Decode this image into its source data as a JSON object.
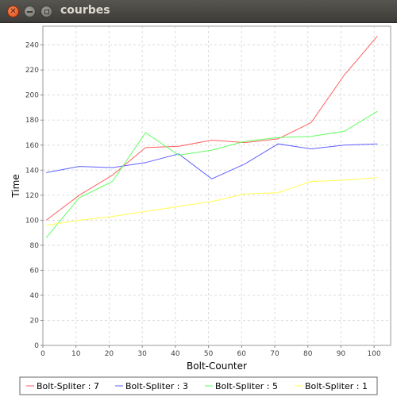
{
  "window": {
    "title": "courbes",
    "close_icon": "close-icon",
    "minimize_icon": "minimize-icon",
    "maximize_icon": "maximize-icon"
  },
  "chart_data": {
    "type": "line",
    "title": "",
    "xlabel": "Bolt-Counter",
    "ylabel": "Time",
    "xlim": [
      0,
      105
    ],
    "ylim": [
      0,
      255
    ],
    "xticks": [
      0,
      10,
      20,
      30,
      40,
      50,
      60,
      70,
      80,
      90,
      100
    ],
    "yticks": [
      0,
      20,
      40,
      60,
      80,
      100,
      120,
      140,
      160,
      180,
      200,
      220,
      240
    ],
    "grid": true,
    "legend": "bottom",
    "x": [
      1,
      11,
      21,
      31,
      41,
      51,
      61,
      71,
      81,
      91,
      101
    ],
    "series": [
      {
        "name": "Bolt-Spliter : 7",
        "color": "#ff5f5f",
        "values": [
          100,
          120,
          136,
          158,
          159,
          164,
          162,
          165,
          178,
          216,
          247
        ]
      },
      {
        "name": "Bolt-Spliter : 3",
        "color": "#6060ff",
        "values": [
          138,
          143,
          142,
          146,
          153,
          133,
          145,
          161,
          157,
          160,
          161
        ]
      },
      {
        "name": "Bolt-Spliter : 5",
        "color": "#60ff60",
        "values": [
          86,
          118,
          131,
          170,
          152,
          156,
          163,
          166,
          167,
          171,
          187
        ]
      },
      {
        "name": "Bolt-Spliter : 1",
        "color": "#ffff50",
        "values": [
          96,
          100,
          103,
          107,
          111,
          115,
          121,
          122,
          131,
          132,
          134
        ]
      }
    ]
  }
}
